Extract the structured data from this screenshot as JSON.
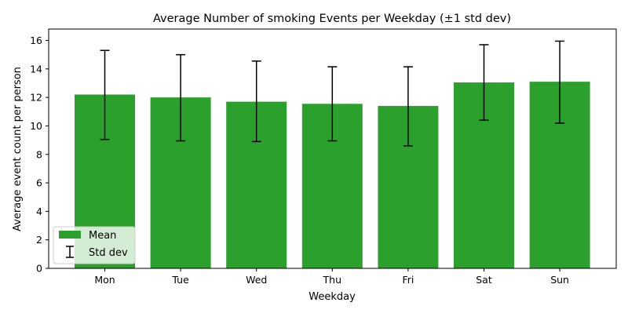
{
  "chart_data": {
    "type": "bar",
    "title": "Average Number of smoking Events per Weekday (±1 std dev)",
    "xlabel": "Weekday",
    "ylabel": "Average event count per person",
    "categories": [
      "Mon",
      "Tue",
      "Wed",
      "Thu",
      "Fri",
      "Sat",
      "Sun"
    ],
    "series": [
      {
        "name": "Mean",
        "values": [
          12.2,
          12.0,
          11.7,
          11.55,
          11.4,
          13.05,
          13.1
        ],
        "err_low": [
          9.05,
          8.95,
          8.9,
          8.95,
          8.6,
          10.4,
          10.2
        ],
        "err_high": [
          15.3,
          15.0,
          14.55,
          14.15,
          14.15,
          15.7,
          15.95
        ],
        "error_label": "Std dev"
      }
    ],
    "ylim": [
      0,
      16.8
    ],
    "yticks": [
      0,
      2,
      4,
      6,
      8,
      10,
      12,
      14,
      16
    ],
    "grid": false,
    "legend": "lower-left",
    "colors": {
      "bar": "#2ca02c",
      "error": "#000000"
    }
  }
}
